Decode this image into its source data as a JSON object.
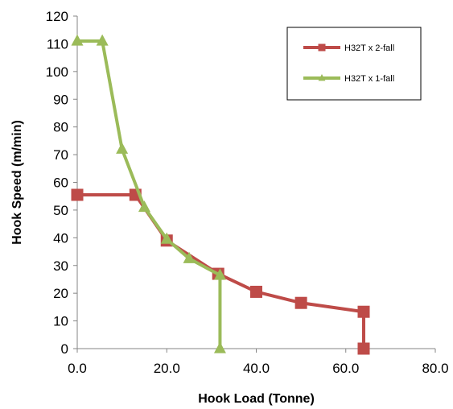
{
  "chart_data": {
    "type": "line",
    "title": "",
    "xlabel": "Hook Load (Tonne)",
    "ylabel": "Hook Speed (m/min)",
    "xlim": [
      0,
      80
    ],
    "ylim": [
      0,
      120
    ],
    "x_ticks": [
      "0.0",
      "20.0",
      "40.0",
      "60.0",
      "80.0"
    ],
    "y_ticks": [
      "0",
      "10",
      "20",
      "30",
      "40",
      "50",
      "60",
      "70",
      "80",
      "90",
      "100",
      "110",
      "120"
    ],
    "grid": false,
    "legend_position": "top-right",
    "series": [
      {
        "name": "H32T x 2-fall",
        "color": "#be4b48",
        "marker": "square",
        "points": [
          [
            0,
            55.5
          ],
          [
            13,
            55.5
          ],
          [
            20,
            39
          ],
          [
            31.5,
            27
          ],
          [
            40,
            20.5
          ],
          [
            50,
            16.5
          ],
          [
            64,
            13.3
          ],
          [
            64,
            0
          ]
        ]
      },
      {
        "name": "H32T x 1-fall",
        "color": "#9bbb59",
        "marker": "triangle",
        "points": [
          [
            0,
            111
          ],
          [
            5.6,
            111
          ],
          [
            10,
            72
          ],
          [
            15,
            51
          ],
          [
            20,
            39.5
          ],
          [
            25,
            32.5
          ],
          [
            31.9,
            26.5
          ],
          [
            31.9,
            0
          ]
        ]
      }
    ]
  }
}
